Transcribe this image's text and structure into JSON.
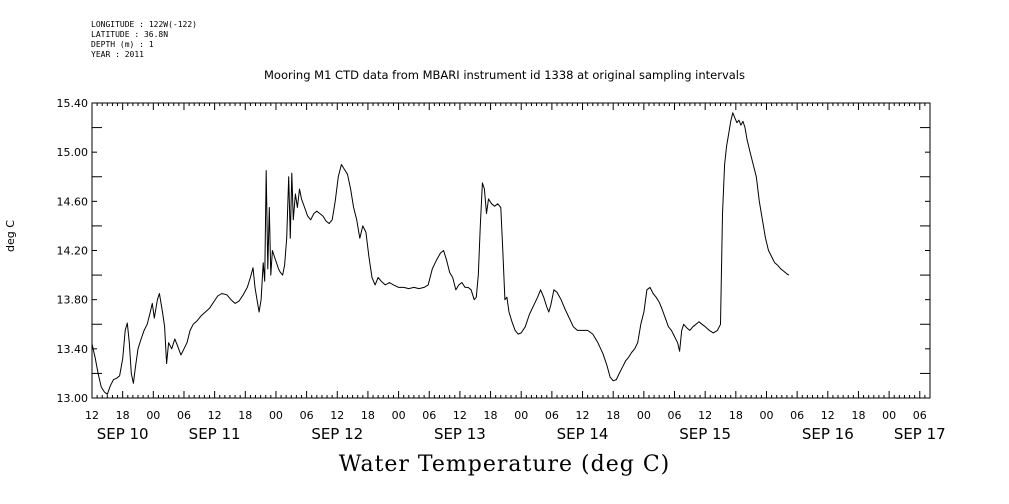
{
  "metadata": [
    {
      "label": "LONGITUDE",
      "value": "122W(-122)"
    },
    {
      "label": "LATITUDE",
      "value": "36.8N"
    },
    {
      "label": "DEPTH (m)",
      "value": "1"
    },
    {
      "label": "YEAR",
      "value": "2011"
    }
  ],
  "chart_data": {
    "type": "line",
    "title": "Mooring M1 CTD data from MBARI instrument id 1338 at original sampling intervals",
    "xlabel": "Water Temperature (deg C)",
    "ylabel": "deg C",
    "xlim": [
      0,
      164
    ],
    "ylim": [
      13.0,
      15.4
    ],
    "x_units": "hours since SEP 10 12:00 (2011)",
    "yticks": [
      "13.00",
      "13.40",
      "13.80",
      "14.20",
      "14.60",
      "15.00",
      "15.40"
    ],
    "hour_ticks": [
      "12",
      "18",
      "00",
      "06",
      "12",
      "18",
      "00",
      "06",
      "12",
      "18",
      "00",
      "06",
      "12",
      "18",
      "00",
      "06",
      "12",
      "18",
      "00",
      "06",
      "12",
      "18",
      "00",
      "06",
      "12",
      "18",
      "00",
      "06"
    ],
    "day_labels": [
      {
        "label": "SEP 10",
        "hour": 6
      },
      {
        "label": "SEP 11",
        "hour": 24
      },
      {
        "label": "SEP 12",
        "hour": 48
      },
      {
        "label": "SEP 13",
        "hour": 72
      },
      {
        "label": "SEP 14",
        "hour": 96
      },
      {
        "label": "SEP 15",
        "hour": 120
      },
      {
        "label": "SEP 16",
        "hour": 144
      },
      {
        "label": "SEP 17",
        "hour": 162
      }
    ],
    "line_color": "#000000",
    "series": [
      {
        "values": [
          [
            0.0,
            13.44
          ],
          [
            0.6,
            13.33
          ],
          [
            1.2,
            13.2
          ],
          [
            1.8,
            13.09
          ],
          [
            2.4,
            13.05
          ],
          [
            3.0,
            13.03
          ],
          [
            3.6,
            13.1
          ],
          [
            4.2,
            13.15
          ],
          [
            4.8,
            13.16
          ],
          [
            5.4,
            13.18
          ],
          [
            6.0,
            13.32
          ],
          [
            6.5,
            13.55
          ],
          [
            6.9,
            13.61
          ],
          [
            7.3,
            13.45
          ],
          [
            7.7,
            13.2
          ],
          [
            8.1,
            13.12
          ],
          [
            8.5,
            13.25
          ],
          [
            9.0,
            13.4
          ],
          [
            9.6,
            13.48
          ],
          [
            10.2,
            13.55
          ],
          [
            10.8,
            13.6
          ],
          [
            11.4,
            13.7
          ],
          [
            11.8,
            13.77
          ],
          [
            12.2,
            13.65
          ],
          [
            12.8,
            13.8
          ],
          [
            13.2,
            13.85
          ],
          [
            13.8,
            13.7
          ],
          [
            14.2,
            13.58
          ],
          [
            14.6,
            13.28
          ],
          [
            15.0,
            13.45
          ],
          [
            15.6,
            13.4
          ],
          [
            16.2,
            13.48
          ],
          [
            16.8,
            13.42
          ],
          [
            17.4,
            13.35
          ],
          [
            18.0,
            13.4
          ],
          [
            18.6,
            13.45
          ],
          [
            19.2,
            13.55
          ],
          [
            19.8,
            13.6
          ],
          [
            20.6,
            13.63
          ],
          [
            21.4,
            13.67
          ],
          [
            22.2,
            13.7
          ],
          [
            23.0,
            13.73
          ],
          [
            23.8,
            13.78
          ],
          [
            24.6,
            13.83
          ],
          [
            25.4,
            13.85
          ],
          [
            26.4,
            13.84
          ],
          [
            27.2,
            13.8
          ],
          [
            28.0,
            13.77
          ],
          [
            28.8,
            13.79
          ],
          [
            29.6,
            13.84
          ],
          [
            30.4,
            13.9
          ],
          [
            31.0,
            13.98
          ],
          [
            31.5,
            14.06
          ],
          [
            31.9,
            13.9
          ],
          [
            32.3,
            13.8
          ],
          [
            32.7,
            13.7
          ],
          [
            33.1,
            13.8
          ],
          [
            33.5,
            14.1
          ],
          [
            33.8,
            13.95
          ],
          [
            34.1,
            14.85
          ],
          [
            34.4,
            14.05
          ],
          [
            34.7,
            14.55
          ],
          [
            35.0,
            14.0
          ],
          [
            35.3,
            14.2
          ],
          [
            35.7,
            14.15
          ],
          [
            36.1,
            14.1
          ],
          [
            36.5,
            14.05
          ],
          [
            36.9,
            14.02
          ],
          [
            37.3,
            14.0
          ],
          [
            37.7,
            14.08
          ],
          [
            38.1,
            14.3
          ],
          [
            38.5,
            14.8
          ],
          [
            38.8,
            14.3
          ],
          [
            39.1,
            14.83
          ],
          [
            39.4,
            14.45
          ],
          [
            39.8,
            14.66
          ],
          [
            40.2,
            14.55
          ],
          [
            40.6,
            14.7
          ],
          [
            41.0,
            14.62
          ],
          [
            41.6,
            14.55
          ],
          [
            42.2,
            14.48
          ],
          [
            42.8,
            14.45
          ],
          [
            43.4,
            14.5
          ],
          [
            44.0,
            14.52
          ],
          [
            44.6,
            14.5
          ],
          [
            45.2,
            14.48
          ],
          [
            45.8,
            14.44
          ],
          [
            46.4,
            14.42
          ],
          [
            47.0,
            14.45
          ],
          [
            47.6,
            14.6
          ],
          [
            48.2,
            14.8
          ],
          [
            48.8,
            14.9
          ],
          [
            49.4,
            14.86
          ],
          [
            50.0,
            14.82
          ],
          [
            50.6,
            14.7
          ],
          [
            51.2,
            14.55
          ],
          [
            51.8,
            14.45
          ],
          [
            52.4,
            14.3
          ],
          [
            53.0,
            14.4
          ],
          [
            53.6,
            14.35
          ],
          [
            54.2,
            14.15
          ],
          [
            54.8,
            13.98
          ],
          [
            55.4,
            13.92
          ],
          [
            56.0,
            13.98
          ],
          [
            56.6,
            13.95
          ],
          [
            57.4,
            13.92
          ],
          [
            58.2,
            13.94
          ],
          [
            59.0,
            13.92
          ],
          [
            60.0,
            13.9
          ],
          [
            61.0,
            13.9
          ],
          [
            62.0,
            13.89
          ],
          [
            63.0,
            13.9
          ],
          [
            64.0,
            13.89
          ],
          [
            65.0,
            13.9
          ],
          [
            65.8,
            13.92
          ],
          [
            66.6,
            14.05
          ],
          [
            67.4,
            14.12
          ],
          [
            68.2,
            14.18
          ],
          [
            68.8,
            14.2
          ],
          [
            69.4,
            14.12
          ],
          [
            70.0,
            14.02
          ],
          [
            70.6,
            13.98
          ],
          [
            71.2,
            13.88
          ],
          [
            71.8,
            13.92
          ],
          [
            72.4,
            13.94
          ],
          [
            73.0,
            13.9
          ],
          [
            73.6,
            13.9
          ],
          [
            74.2,
            13.88
          ],
          [
            74.8,
            13.8
          ],
          [
            75.2,
            13.82
          ],
          [
            75.6,
            14.0
          ],
          [
            76.0,
            14.4
          ],
          [
            76.4,
            14.75
          ],
          [
            76.8,
            14.7
          ],
          [
            77.2,
            14.5
          ],
          [
            77.6,
            14.62
          ],
          [
            78.2,
            14.58
          ],
          [
            78.8,
            14.56
          ],
          [
            79.4,
            14.58
          ],
          [
            80.0,
            14.55
          ],
          [
            80.4,
            14.2
          ],
          [
            80.8,
            13.8
          ],
          [
            81.2,
            13.82
          ],
          [
            81.6,
            13.7
          ],
          [
            82.2,
            13.62
          ],
          [
            82.8,
            13.55
          ],
          [
            83.4,
            13.52
          ],
          [
            84.0,
            13.53
          ],
          [
            84.8,
            13.58
          ],
          [
            85.6,
            13.68
          ],
          [
            86.4,
            13.75
          ],
          [
            87.2,
            13.82
          ],
          [
            87.8,
            13.88
          ],
          [
            88.4,
            13.82
          ],
          [
            89.0,
            13.74
          ],
          [
            89.4,
            13.7
          ],
          [
            89.8,
            13.76
          ],
          [
            90.4,
            13.88
          ],
          [
            91.0,
            13.86
          ],
          [
            91.8,
            13.8
          ],
          [
            92.6,
            13.72
          ],
          [
            93.4,
            13.65
          ],
          [
            94.2,
            13.58
          ],
          [
            95.0,
            13.55
          ],
          [
            96.0,
            13.55
          ],
          [
            97.0,
            13.55
          ],
          [
            98.0,
            13.52
          ],
          [
            99.0,
            13.45
          ],
          [
            100.0,
            13.36
          ],
          [
            100.8,
            13.26
          ],
          [
            101.4,
            13.17
          ],
          [
            102.0,
            13.14
          ],
          [
            102.6,
            13.15
          ],
          [
            103.2,
            13.2
          ],
          [
            103.8,
            13.25
          ],
          [
            104.4,
            13.3
          ],
          [
            105.0,
            13.33
          ],
          [
            105.6,
            13.37
          ],
          [
            106.2,
            13.4
          ],
          [
            106.8,
            13.45
          ],
          [
            107.4,
            13.6
          ],
          [
            108.0,
            13.7
          ],
          [
            108.6,
            13.88
          ],
          [
            109.2,
            13.9
          ],
          [
            109.8,
            13.85
          ],
          [
            110.4,
            13.82
          ],
          [
            111.0,
            13.78
          ],
          [
            111.6,
            13.72
          ],
          [
            112.2,
            13.65
          ],
          [
            112.8,
            13.58
          ],
          [
            113.4,
            13.55
          ],
          [
            114.0,
            13.5
          ],
          [
            114.6,
            13.45
          ],
          [
            115.0,
            13.38
          ],
          [
            115.4,
            13.55
          ],
          [
            115.8,
            13.6
          ],
          [
            116.4,
            13.57
          ],
          [
            117.0,
            13.55
          ],
          [
            117.6,
            13.58
          ],
          [
            118.2,
            13.6
          ],
          [
            118.8,
            13.62
          ],
          [
            119.4,
            13.6
          ],
          [
            120.0,
            13.58
          ],
          [
            120.8,
            13.55
          ],
          [
            121.6,
            13.53
          ],
          [
            122.4,
            13.55
          ],
          [
            123.0,
            13.6
          ],
          [
            123.4,
            14.5
          ],
          [
            123.8,
            14.9
          ],
          [
            124.2,
            15.05
          ],
          [
            124.6,
            15.15
          ],
          [
            125.0,
            15.25
          ],
          [
            125.4,
            15.32
          ],
          [
            125.8,
            15.28
          ],
          [
            126.2,
            15.24
          ],
          [
            126.6,
            15.26
          ],
          [
            127.0,
            15.22
          ],
          [
            127.4,
            15.25
          ],
          [
            127.8,
            15.2
          ],
          [
            128.2,
            15.1
          ],
          [
            128.8,
            15.0
          ],
          [
            129.4,
            14.9
          ],
          [
            130.0,
            14.8
          ],
          [
            130.6,
            14.6
          ],
          [
            131.2,
            14.45
          ],
          [
            131.8,
            14.3
          ],
          [
            132.4,
            14.2
          ],
          [
            133.0,
            14.15
          ],
          [
            133.6,
            14.1
          ],
          [
            134.2,
            14.08
          ],
          [
            134.8,
            14.05
          ],
          [
            135.4,
            14.03
          ],
          [
            136.0,
            14.01
          ],
          [
            136.4,
            14.0
          ]
        ]
      }
    ]
  }
}
